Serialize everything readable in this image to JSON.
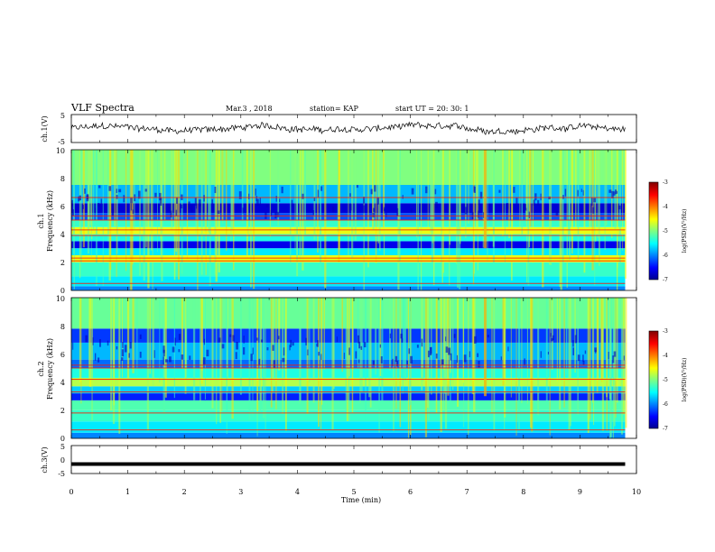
{
  "header": {
    "title": "VLF Spectra",
    "date": "Mar.3 , 2018",
    "station": "station= KAP",
    "start_time": "start UT = 20: 30: 1"
  },
  "chart_data": [
    {
      "type": "line",
      "panel": "ch1-waveform",
      "ylabel": "ch.1(V)",
      "ylim": [
        -5,
        5
      ],
      "yticks": [
        "5",
        "-5"
      ],
      "xlim": [
        0,
        10
      ],
      "x_extent_min": [
        0,
        9.8
      ],
      "description_values": "noisy waveform around 0 V"
    },
    {
      "type": "heatmap",
      "panel": "ch1-spectrogram",
      "ylabel": "ch.1\nFrequency (kHz)",
      "ylabel_line1": "ch.1",
      "ylabel_line2": "Frequency (kHz)",
      "ylim": [
        0,
        10
      ],
      "yticks": [
        "0",
        "2",
        "4",
        "6",
        "8",
        "10"
      ],
      "xlim": [
        0,
        10
      ],
      "time_extent_min": [
        0,
        9.8
      ],
      "colorbar": {
        "label": "log(PSD)(V²/Hz)",
        "range": [
          -7,
          -3
        ],
        "ticks": [
          "-3",
          "-4",
          "-5",
          "-6",
          "-7"
        ]
      },
      "bands": [
        {
          "f_kHz": [
            0.0,
            0.3
          ],
          "level": -6.0
        },
        {
          "f_kHz": [
            0.3,
            1.0
          ],
          "level": -5.6
        },
        {
          "f_kHz": [
            1.0,
            2.0
          ],
          "level": -5.3
        },
        {
          "f_kHz": [
            2.0,
            2.5
          ],
          "level": -4.6
        },
        {
          "f_kHz": [
            2.5,
            3.0
          ],
          "level": -5.6
        },
        {
          "f_kHz": [
            3.0,
            3.5
          ],
          "level": -6.6
        },
        {
          "f_kHz": [
            3.5,
            4.0
          ],
          "level": -5.4
        },
        {
          "f_kHz": [
            4.0,
            4.5
          ],
          "level": -4.6
        },
        {
          "f_kHz": [
            4.5,
            5.0
          ],
          "level": -5.3
        },
        {
          "f_kHz": [
            5.0,
            5.5
          ],
          "level": -6.2
        },
        {
          "f_kHz": [
            5.5,
            6.2
          ],
          "level": -6.7
        },
        {
          "f_kHz": [
            6.2,
            7.5
          ],
          "level": -5.8
        },
        {
          "f_kHz": [
            7.5,
            10.0
          ],
          "level": -5.0
        }
      ],
      "lines_kHz": [
        0.5,
        2.1,
        2.3,
        3.9,
        4.3,
        5.0,
        5.3,
        6.6
      ]
    },
    {
      "type": "heatmap",
      "panel": "ch2-spectrogram",
      "ylabel_line1": "ch.2",
      "ylabel_line2": "Frequency (kHz)",
      "ylim": [
        0,
        10
      ],
      "yticks": [
        "0",
        "2",
        "4",
        "6",
        "8",
        "10"
      ],
      "xlim": [
        0,
        10
      ],
      "time_extent_min": [
        0,
        9.8
      ],
      "colorbar": {
        "label": "log(PSD)(V²/Hz)",
        "range": [
          -7,
          -3
        ],
        "ticks": [
          "-3",
          "-4",
          "-5",
          "-6",
          "-7"
        ]
      },
      "bands": [
        {
          "f_kHz": [
            0.0,
            0.4
          ],
          "level": -6.0
        },
        {
          "f_kHz": [
            0.4,
            1.2
          ],
          "level": -5.6
        },
        {
          "f_kHz": [
            1.2,
            2.0
          ],
          "level": -5.3
        },
        {
          "f_kHz": [
            2.0,
            2.7
          ],
          "level": -5.2
        },
        {
          "f_kHz": [
            2.7,
            3.2
          ],
          "level": -6.4
        },
        {
          "f_kHz": [
            3.2,
            3.7
          ],
          "level": -5.7
        },
        {
          "f_kHz": [
            3.7,
            4.3
          ],
          "level": -4.8
        },
        {
          "f_kHz": [
            4.3,
            5.0
          ],
          "level": -5.4
        },
        {
          "f_kHz": [
            5.0,
            5.6
          ],
          "level": -6.1
        },
        {
          "f_kHz": [
            5.6,
            6.8
          ],
          "level": -5.8
        },
        {
          "f_kHz": [
            6.8,
            7.8
          ],
          "level": -6.3
        },
        {
          "f_kHz": [
            7.8,
            10.0
          ],
          "level": -5.1
        }
      ],
      "lines_kHz": [
        0.6,
        1.8,
        3.3,
        4.2,
        5.0,
        5.2
      ]
    },
    {
      "type": "line",
      "panel": "ch3-waveform",
      "ylabel": "ch.3(V)",
      "ylim": [
        -5,
        5
      ],
      "yticks": [
        "5",
        "0",
        "-5"
      ],
      "xlim": [
        0,
        10
      ],
      "xlabel": "Time (min)",
      "xticks": [
        "0",
        "1",
        "2",
        "3",
        "4",
        "5",
        "6",
        "7",
        "8",
        "9",
        "10"
      ],
      "constant_value_V": -1.6
    }
  ],
  "colors": {
    "colormap": [
      "#00008f",
      "#0000ff",
      "#00ffff",
      "#80ff80",
      "#ffff00",
      "#ff0000",
      "#800000"
    ]
  }
}
